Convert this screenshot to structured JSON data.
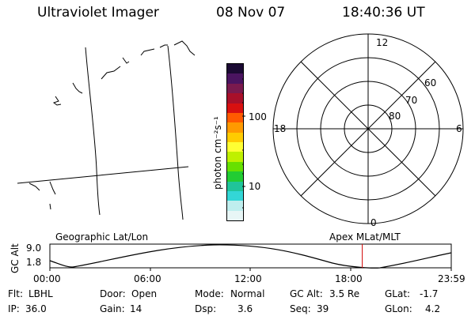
{
  "header": {
    "instrument": "Ultraviolet Imager",
    "date": "08 Nov 07",
    "time": "18:40:36 UT"
  },
  "colorbar": {
    "label": "photon cm⁻²s⁻¹",
    "ticks": [
      "100",
      "10"
    ],
    "colors": [
      "#1b0a33",
      "#4a1460",
      "#7a1a4e",
      "#a8102a",
      "#d81010",
      "#ff5a00",
      "#ff9a00",
      "#ffcc00",
      "#ffff33",
      "#bff000",
      "#66e000",
      "#22cc33",
      "#20c49a",
      "#33d6d6",
      "#bfeeee",
      "#e8f6f6"
    ]
  },
  "geo_panel": {
    "title": "Geographic Lat/Lon"
  },
  "polar_panel": {
    "title": "Apex MLat/MLT",
    "mlt_labels": {
      "top": "12",
      "left": "18",
      "right": "6",
      "bottom": "0"
    },
    "lat_labels": [
      "60",
      "70",
      "80"
    ]
  },
  "altitude_plot": {
    "ylabel": "GC Alt",
    "yticks": [
      "9.0",
      "1.8"
    ],
    "xticks": [
      "00:00",
      "06:00",
      "12:00",
      "18:00",
      "23:59"
    ],
    "current_marker_hours": 18.68
  },
  "info": {
    "flt_label": "Flt:",
    "flt_value": "LBHL",
    "ip_label": "IP:",
    "ip_value": "36.0",
    "door_label": "Door:",
    "door_value": "Open",
    "gain_label": "Gain:",
    "gain_value": "14",
    "mode_label": "Mode:",
    "mode_value": "Normal",
    "dsp_label": "Dsp:",
    "dsp_value": "3.6",
    "gcalt_label": "GC Alt:",
    "gcalt_value": "3.5 Re",
    "seq_label": "Seq:",
    "seq_value": "39",
    "glat_label": "GLat:",
    "glat_value": "-1.7",
    "glon_label": "GLon:",
    "glon_value": "4.2"
  }
}
